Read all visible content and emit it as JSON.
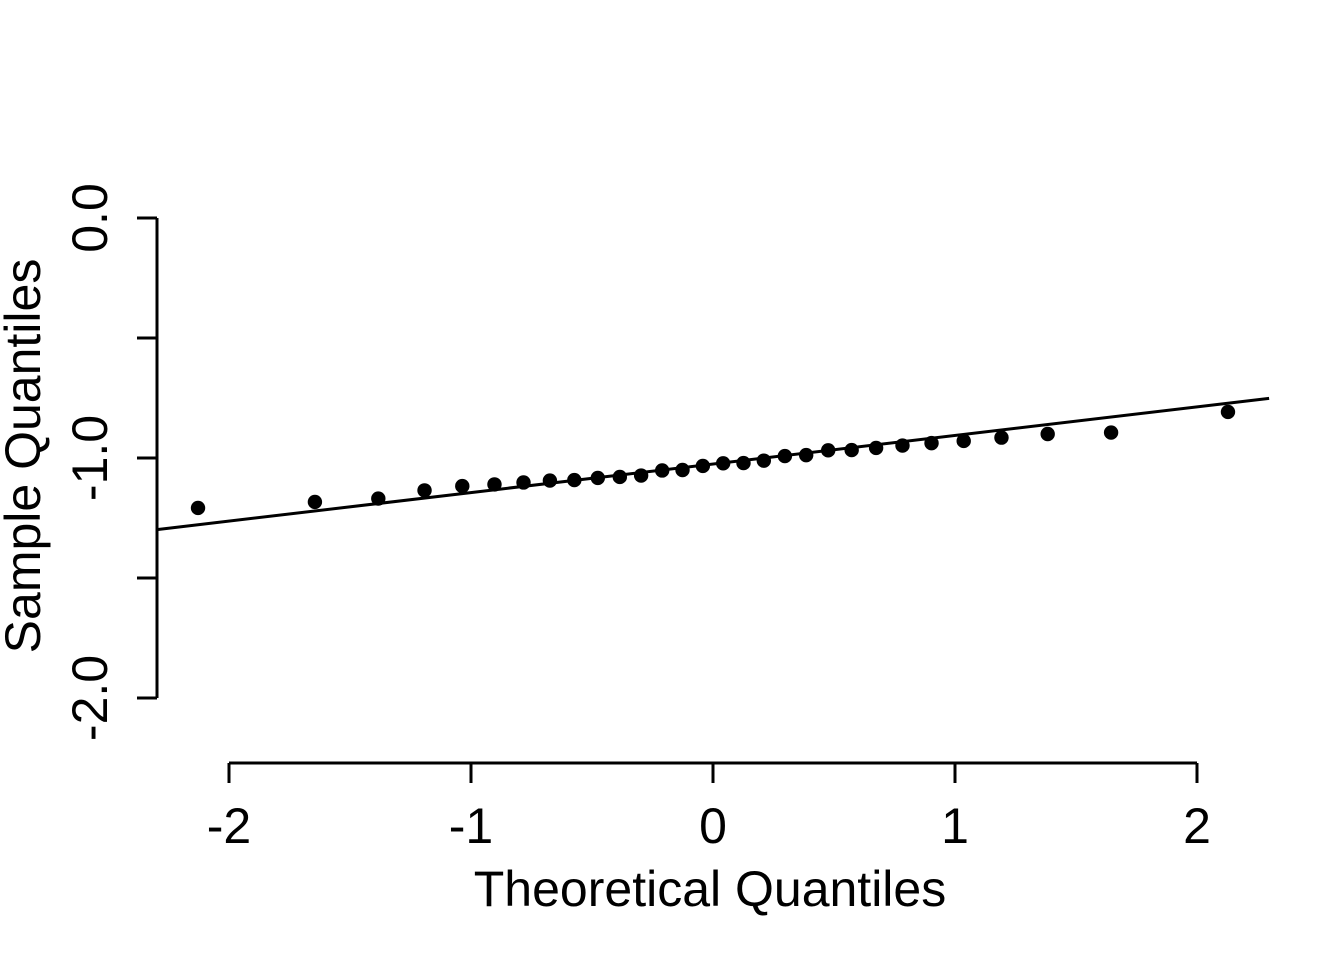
{
  "chart_data": {
    "type": "scatter",
    "title": "",
    "xlabel": "Theoretical Quantiles",
    "ylabel": "Sample Quantiles",
    "xlim": [
      -2.298,
      2.298
    ],
    "ylim": [
      -2.08,
      0.08
    ],
    "grid": false,
    "legend": "none",
    "x_axis": {
      "ticks": [
        {
          "v": -2,
          "label": "-2"
        },
        {
          "v": -1,
          "label": "-1"
        },
        {
          "v": 0,
          "label": "0"
        },
        {
          "v": 1,
          "label": "1"
        },
        {
          "v": 2,
          "label": "2"
        }
      ]
    },
    "y_axis": {
      "ticks": [
        {
          "v": 0.0,
          "label": "0.0"
        },
        {
          "v": -0.5,
          "label": ""
        },
        {
          "v": -1.0,
          "label": "-1.0"
        },
        {
          "v": -1.5,
          "label": ""
        },
        {
          "v": -2.0,
          "label": "-2.0"
        }
      ]
    },
    "points": {
      "theoretical": [
        -2.128,
        -1.645,
        -1.383,
        -1.192,
        -1.036,
        -0.903,
        -0.783,
        -0.674,
        -0.573,
        -0.476,
        -0.385,
        -0.297,
        -0.21,
        -0.126,
        -0.042,
        0.042,
        0.126,
        0.21,
        0.297,
        0.385,
        0.476,
        0.573,
        0.674,
        0.783,
        0.903,
        1.036,
        1.192,
        1.383,
        1.645,
        2.128
      ],
      "sample": [
        -1.208,
        -1.183,
        -1.169,
        -1.135,
        -1.117,
        -1.11,
        -1.102,
        -1.094,
        -1.092,
        -1.083,
        -1.079,
        -1.073,
        -1.052,
        -1.05,
        -1.033,
        -1.022,
        -1.021,
        -1.011,
        -0.992,
        -0.988,
        -0.968,
        -0.967,
        -0.958,
        -0.948,
        -0.938,
        -0.929,
        -0.915,
        -0.9,
        -0.894,
        -0.808
      ]
    },
    "fit_line": {
      "slope": 0.119,
      "intercept": -1.025,
      "q_start": -2.298,
      "q_end": 2.298
    },
    "colors": {
      "point": "#000000",
      "line": "#000000",
      "axis": "#000000",
      "background": "#ffffff"
    }
  }
}
